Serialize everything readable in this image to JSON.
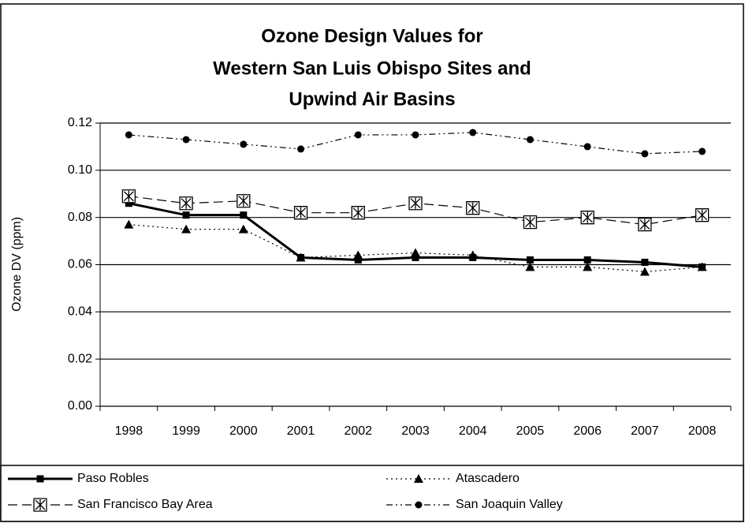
{
  "chart_data": {
    "type": "line",
    "title": [
      "Ozone Design Values for",
      "Western San Luis Obispo Sites and",
      "Upwind Air Basins"
    ],
    "y_label": "Ozone DV (ppm)",
    "categories": [
      "1998",
      "1999",
      "2000",
      "2001",
      "2002",
      "2003",
      "2004",
      "2005",
      "2006",
      "2007",
      "2008"
    ],
    "ylim": [
      0,
      0.12
    ],
    "yticks": [
      {
        "value": 0,
        "label": "0.00"
      },
      {
        "value": 0.02,
        "label": "0.02"
      },
      {
        "value": 0.04,
        "label": "0.04"
      },
      {
        "value": 0.06,
        "label": "0.06"
      },
      {
        "value": 0.08,
        "label": "0.08"
      },
      {
        "value": 0.1,
        "label": "0.10"
      },
      {
        "value": 0.12,
        "label": "0.12"
      }
    ],
    "grid": true,
    "legend": "bottom",
    "series": [
      {
        "name": "Paso Robles",
        "color": "#000000",
        "values": [
          0.086,
          0.081,
          0.081,
          0.063,
          0.062,
          0.063,
          0.063,
          0.062,
          0.062,
          0.061,
          0.059
        ]
      },
      {
        "name": "Atascadero",
        "color": "#000000",
        "values": [
          0.077,
          0.075,
          0.075,
          0.063,
          0.064,
          0.065,
          0.064,
          0.059,
          0.059,
          0.057,
          0.059
        ]
      },
      {
        "name": "San Francisco Bay Area",
        "color": "#000000",
        "values": [
          0.089,
          0.086,
          0.087,
          0.082,
          0.082,
          0.086,
          0.084,
          0.078,
          0.08,
          0.077,
          0.081
        ]
      },
      {
        "name": "San Joaquin Valley",
        "color": "#000000",
        "values": [
          0.115,
          0.113,
          0.111,
          0.109,
          0.115,
          0.115,
          0.116,
          0.113,
          0.11,
          0.107,
          0.108
        ]
      }
    ]
  }
}
